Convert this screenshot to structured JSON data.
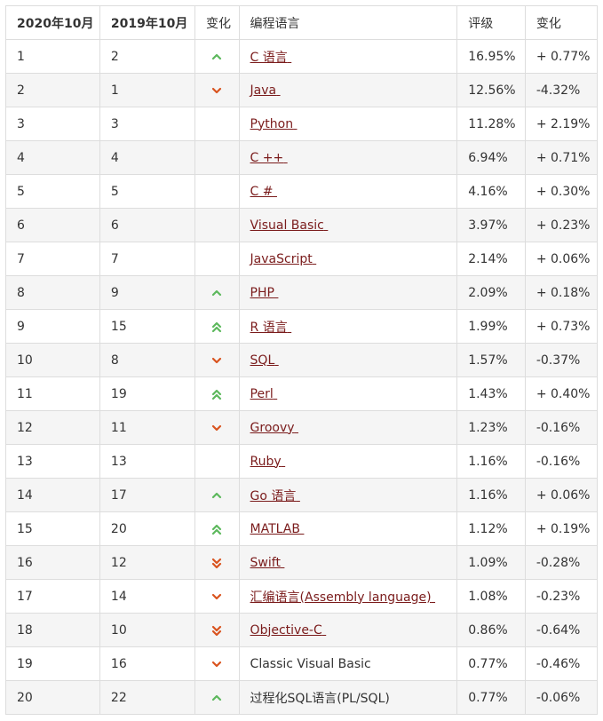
{
  "colors": {
    "up": "#5cb85c",
    "down": "#d9531e",
    "link": "#7a1b1b"
  },
  "headers": [
    "2020年10月",
    "2019年10月",
    "变化",
    "编程语言",
    "评级",
    "变化"
  ],
  "rows": [
    {
      "rank2020": "1",
      "rank2019": "2",
      "trend": "up",
      "language": "C 语言",
      "linked": true,
      "rating": "16.95%",
      "change": "+ 0.77%"
    },
    {
      "rank2020": "2",
      "rank2019": "1",
      "trend": "down",
      "language": "Java",
      "linked": true,
      "rating": "12.56%",
      "change": "-4.32%"
    },
    {
      "rank2020": "3",
      "rank2019": "3",
      "trend": "none",
      "language": "Python",
      "linked": true,
      "rating": "11.28%",
      "change": "+ 2.19%"
    },
    {
      "rank2020": "4",
      "rank2019": "4",
      "trend": "none",
      "language": "C ++",
      "linked": true,
      "rating": "6.94%",
      "change": "+ 0.71%"
    },
    {
      "rank2020": "5",
      "rank2019": "5",
      "trend": "none",
      "language": "C #",
      "linked": true,
      "rating": "4.16%",
      "change": "+ 0.30%"
    },
    {
      "rank2020": "6",
      "rank2019": "6",
      "trend": "none",
      "language": "Visual Basic",
      "linked": true,
      "rating": "3.97%",
      "change": "+ 0.23%"
    },
    {
      "rank2020": "7",
      "rank2019": "7",
      "trend": "none",
      "language": "JavaScript",
      "linked": true,
      "rating": "2.14%",
      "change": "+ 0.06%"
    },
    {
      "rank2020": "8",
      "rank2019": "9",
      "trend": "up",
      "language": "PHP",
      "linked": true,
      "rating": "2.09%",
      "change": "+ 0.18%"
    },
    {
      "rank2020": "9",
      "rank2019": "15",
      "trend": "up2",
      "language": "R 语言",
      "linked": true,
      "rating": "1.99%",
      "change": "+ 0.73%"
    },
    {
      "rank2020": "10",
      "rank2019": "8",
      "trend": "down",
      "language": "SQL",
      "linked": true,
      "rating": "1.57%",
      "change": "-0.37%"
    },
    {
      "rank2020": "11",
      "rank2019": "19",
      "trend": "up2",
      "language": "Perl",
      "linked": true,
      "rating": "1.43%",
      "change": "+ 0.40%"
    },
    {
      "rank2020": "12",
      "rank2019": "11",
      "trend": "down",
      "language": "Groovy",
      "linked": true,
      "rating": "1.23%",
      "change": "-0.16%"
    },
    {
      "rank2020": "13",
      "rank2019": "13",
      "trend": "none",
      "language": "Ruby",
      "linked": true,
      "rating": "1.16%",
      "change": "-0.16%"
    },
    {
      "rank2020": "14",
      "rank2019": "17",
      "trend": "up",
      "language": "Go 语言",
      "linked": true,
      "rating": "1.16%",
      "change": "+ 0.06%"
    },
    {
      "rank2020": "15",
      "rank2019": "20",
      "trend": "up2",
      "language": "MATLAB",
      "linked": true,
      "rating": "1.12%",
      "change": "+ 0.19%"
    },
    {
      "rank2020": "16",
      "rank2019": "12",
      "trend": "down2",
      "language": "Swift",
      "linked": true,
      "rating": "1.09%",
      "change": "-0.28%"
    },
    {
      "rank2020": "17",
      "rank2019": "14",
      "trend": "down",
      "language": "汇编语言(Assembly language)",
      "linked": true,
      "rating": "1.08%",
      "change": "-0.23%"
    },
    {
      "rank2020": "18",
      "rank2019": "10",
      "trend": "down2",
      "language": "Objective-C",
      "linked": true,
      "rating": "0.86%",
      "change": "-0.64%"
    },
    {
      "rank2020": "19",
      "rank2019": "16",
      "trend": "down",
      "language": "Classic Visual Basic",
      "linked": false,
      "rating": "0.77%",
      "change": "-0.46%"
    },
    {
      "rank2020": "20",
      "rank2019": "22",
      "trend": "up",
      "language": "过程化SQL语言(PL/SQL)",
      "linked": false,
      "rating": "0.77%",
      "change": "-0.06%"
    }
  ]
}
